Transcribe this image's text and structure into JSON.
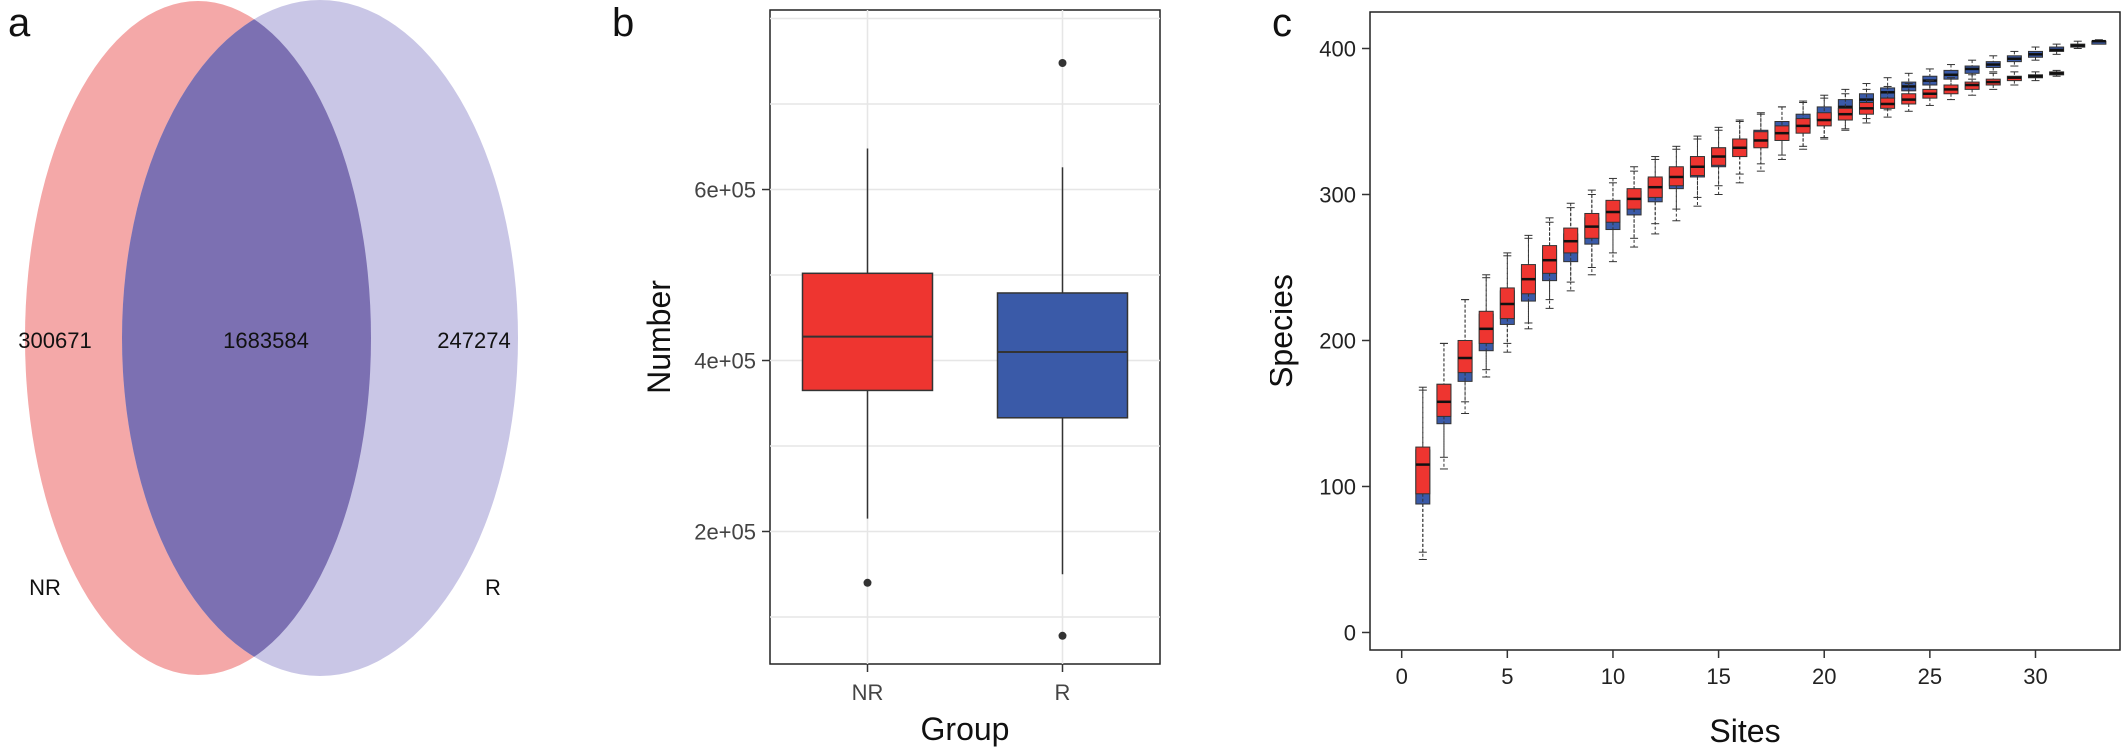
{
  "panels": {
    "a": {
      "letter": "a"
    },
    "b": {
      "letter": "b"
    },
    "c": {
      "letter": "c"
    }
  },
  "colors": {
    "nr": "#ee3530",
    "r": "#3a5aa8",
    "venn_nr": "#f4a8a8",
    "venn_r": "#c9c6e6",
    "venn_overlap": "#7c70b2"
  },
  "chart_data": [
    {
      "id": "a",
      "type": "venn",
      "sets": [
        {
          "name": "NR",
          "only": "300671"
        },
        {
          "name": "R",
          "only": "247274"
        }
      ],
      "intersection": "1683584"
    },
    {
      "id": "b",
      "type": "box",
      "xlabel": "Group",
      "ylabel": "Number",
      "ylim": [
        45000,
        810000
      ],
      "yticks": [
        200000,
        400000,
        600000
      ],
      "ytick_labels": [
        "2e+05",
        "4e+05",
        "6e+05"
      ],
      "grid": true,
      "groups": [
        {
          "name": "NR",
          "whisker_low": 215000,
          "q1": 365000,
          "median": 428000,
          "q3": 502000,
          "whisker_high": 648000,
          "outliers": [
            140000
          ]
        },
        {
          "name": "R",
          "whisker_low": 150000,
          "q1": 333000,
          "median": 410000,
          "q3": 479000,
          "whisker_high": 626000,
          "outliers": [
            78000,
            748000
          ]
        }
      ]
    },
    {
      "id": "c",
      "type": "box",
      "xlabel": "Sites",
      "ylabel": "Species",
      "xlim": [
        -1.5,
        34
      ],
      "ylim": [
        -12,
        425
      ],
      "xticks": [
        0,
        5,
        10,
        15,
        20,
        25,
        30
      ],
      "yticks": [
        0,
        100,
        200,
        300,
        400
      ],
      "grid": false,
      "series": [
        {
          "name": "R",
          "boxes": [
            {
              "x": 1,
              "low": 55,
              "q1": 88,
              "median": 110,
              "q3": 125,
              "high": 168
            },
            {
              "x": 2,
              "low": 112,
              "q1": 143,
              "median": 156,
              "q3": 170,
              "high": 198
            },
            {
              "x": 3,
              "low": 150,
              "q1": 172,
              "median": 186,
              "q3": 198,
              "high": 228
            },
            {
              "x": 4,
              "low": 175,
              "q1": 193,
              "median": 205,
              "q3": 218,
              "high": 243
            },
            {
              "x": 5,
              "low": 192,
              "q1": 211,
              "median": 222,
              "q3": 234,
              "high": 258
            },
            {
              "x": 6,
              "low": 208,
              "q1": 227,
              "median": 238,
              "q3": 249,
              "high": 270
            },
            {
              "x": 7,
              "low": 222,
              "q1": 241,
              "median": 251,
              "q3": 262,
              "high": 281
            },
            {
              "x": 8,
              "low": 234,
              "q1": 254,
              "median": 263,
              "q3": 273,
              "high": 291
            },
            {
              "x": 9,
              "low": 245,
              "q1": 266,
              "median": 274,
              "q3": 284,
              "high": 300
            },
            {
              "x": 10,
              "low": 254,
              "q1": 276,
              "median": 284,
              "q3": 293,
              "high": 308
            },
            {
              "x": 11,
              "low": 264,
              "q1": 286,
              "median": 294,
              "q3": 302,
              "high": 316
            },
            {
              "x": 12,
              "low": 273,
              "q1": 295,
              "median": 302,
              "q3": 311,
              "high": 324
            },
            {
              "x": 13,
              "low": 282,
              "q1": 304,
              "median": 310,
              "q3": 318,
              "high": 331
            },
            {
              "x": 14,
              "low": 292,
              "q1": 312,
              "median": 318,
              "q3": 325,
              "high": 338
            },
            {
              "x": 15,
              "low": 300,
              "q1": 319,
              "median": 325,
              "q3": 332,
              "high": 344
            },
            {
              "x": 16,
              "low": 308,
              "q1": 326,
              "median": 332,
              "q3": 338,
              "high": 350
            },
            {
              "x": 17,
              "low": 316,
              "q1": 333,
              "median": 338,
              "q3": 344,
              "high": 355
            },
            {
              "x": 18,
              "low": 324,
              "q1": 339,
              "median": 344,
              "q3": 350,
              "high": 360
            },
            {
              "x": 19,
              "low": 331,
              "q1": 345,
              "median": 350,
              "q3": 355,
              "high": 364
            },
            {
              "x": 20,
              "low": 338,
              "q1": 351,
              "median": 355,
              "q3": 360,
              "high": 368
            },
            {
              "x": 21,
              "low": 345,
              "q1": 356,
              "median": 360,
              "q3": 365,
              "high": 372
            },
            {
              "x": 22,
              "low": 352,
              "q1": 361,
              "median": 365,
              "q3": 369,
              "high": 376
            },
            {
              "x": 23,
              "low": 358,
              "q1": 366,
              "median": 370,
              "q3": 373,
              "high": 380
            },
            {
              "x": 24,
              "low": 364,
              "q1": 371,
              "median": 374,
              "q3": 377,
              "high": 383
            },
            {
              "x": 25,
              "low": 369,
              "q1": 375,
              "median": 378,
              "q3": 381,
              "high": 386
            },
            {
              "x": 26,
              "low": 374,
              "q1": 379,
              "median": 382,
              "q3": 385,
              "high": 389
            },
            {
              "x": 27,
              "low": 379,
              "q1": 383,
              "median": 386,
              "q3": 388,
              "high": 392
            },
            {
              "x": 28,
              "low": 384,
              "q1": 387,
              "median": 389,
              "q3": 391,
              "high": 395
            },
            {
              "x": 29,
              "low": 388,
              "q1": 391,
              "median": 393,
              "q3": 395,
              "high": 398
            },
            {
              "x": 30,
              "low": 392,
              "q1": 394,
              "median": 396,
              "q3": 398,
              "high": 401
            },
            {
              "x": 31,
              "low": 396,
              "q1": 398,
              "median": 399,
              "q3": 401,
              "high": 403
            },
            {
              "x": 32,
              "low": 400,
              "q1": 401,
              "median": 402,
              "q3": 403,
              "high": 405
            },
            {
              "x": 33,
              "low": 404,
              "q1": 404,
              "median": 405,
              "q3": 405,
              "high": 406
            }
          ]
        },
        {
          "name": "NR",
          "boxes": [
            {
              "x": 1,
              "low": 50,
              "q1": 95,
              "median": 115,
              "q3": 127,
              "high": 166
            },
            {
              "x": 2,
              "low": 120,
              "q1": 148,
              "median": 158,
              "q3": 170,
              "high": 198
            },
            {
              "x": 3,
              "low": 158,
              "q1": 178,
              "median": 188,
              "q3": 200,
              "high": 228
            },
            {
              "x": 4,
              "low": 180,
              "q1": 198,
              "median": 208,
              "q3": 220,
              "high": 245
            },
            {
              "x": 5,
              "low": 198,
              "q1": 215,
              "median": 225,
              "q3": 236,
              "high": 260
            },
            {
              "x": 6,
              "low": 212,
              "q1": 232,
              "median": 242,
              "q3": 252,
              "high": 272
            },
            {
              "x": 7,
              "low": 228,
              "q1": 246,
              "median": 255,
              "q3": 265,
              "high": 284
            },
            {
              "x": 8,
              "low": 240,
              "q1": 260,
              "median": 268,
              "q3": 277,
              "high": 294
            },
            {
              "x": 9,
              "low": 250,
              "q1": 270,
              "median": 278,
              "q3": 287,
              "high": 303
            },
            {
              "x": 10,
              "low": 260,
              "q1": 281,
              "median": 288,
              "q3": 296,
              "high": 311
            },
            {
              "x": 11,
              "low": 270,
              "q1": 290,
              "median": 297,
              "q3": 304,
              "high": 319
            },
            {
              "x": 12,
              "low": 280,
              "q1": 298,
              "median": 305,
              "q3": 312,
              "high": 326
            },
            {
              "x": 13,
              "low": 290,
              "q1": 306,
              "median": 312,
              "q3": 319,
              "high": 333
            },
            {
              "x": 14,
              "low": 298,
              "q1": 313,
              "median": 319,
              "q3": 326,
              "high": 340
            },
            {
              "x": 15,
              "low": 306,
              "q1": 320,
              "median": 326,
              "q3": 332,
              "high": 346
            },
            {
              "x": 16,
              "low": 314,
              "q1": 326,
              "median": 332,
              "q3": 338,
              "high": 351
            },
            {
              "x": 17,
              "low": 321,
              "q1": 332,
              "median": 337,
              "q3": 343,
              "high": 356
            },
            {
              "x": 18,
              "low": 327,
              "q1": 337,
              "median": 342,
              "q3": 347,
              "high": 360
            },
            {
              "x": 19,
              "low": 333,
              "q1": 342,
              "median": 347,
              "q3": 352,
              "high": 363
            },
            {
              "x": 20,
              "low": 339,
              "q1": 347,
              "median": 351,
              "q3": 356,
              "high": 366
            },
            {
              "x": 21,
              "low": 344,
              "q1": 351,
              "median": 355,
              "q3": 359,
              "high": 369
            },
            {
              "x": 22,
              "low": 349,
              "q1": 355,
              "median": 359,
              "q3": 363,
              "high": 372
            },
            {
              "x": 23,
              "low": 353,
              "q1": 359,
              "median": 362,
              "q3": 366,
              "high": 374
            },
            {
              "x": 24,
              "low": 357,
              "q1": 362,
              "median": 365,
              "q3": 369,
              "high": 376
            },
            {
              "x": 25,
              "low": 361,
              "q1": 366,
              "median": 369,
              "q3": 372,
              "high": 378
            },
            {
              "x": 26,
              "low": 365,
              "q1": 369,
              "median": 372,
              "q3": 375,
              "high": 380
            },
            {
              "x": 27,
              "low": 368,
              "q1": 372,
              "median": 375,
              "q3": 377,
              "high": 382
            },
            {
              "x": 28,
              "low": 372,
              "q1": 375,
              "median": 377,
              "q3": 379,
              "high": 383
            },
            {
              "x": 29,
              "low": 375,
              "q1": 378,
              "median": 380,
              "q3": 381,
              "high": 384
            },
            {
              "x": 30,
              "low": 378,
              "q1": 380,
              "median": 381,
              "q3": 382,
              "high": 384
            },
            {
              "x": 31,
              "low": 381,
              "q1": 382,
              "median": 383,
              "q3": 384,
              "high": 385
            }
          ]
        }
      ]
    }
  ]
}
